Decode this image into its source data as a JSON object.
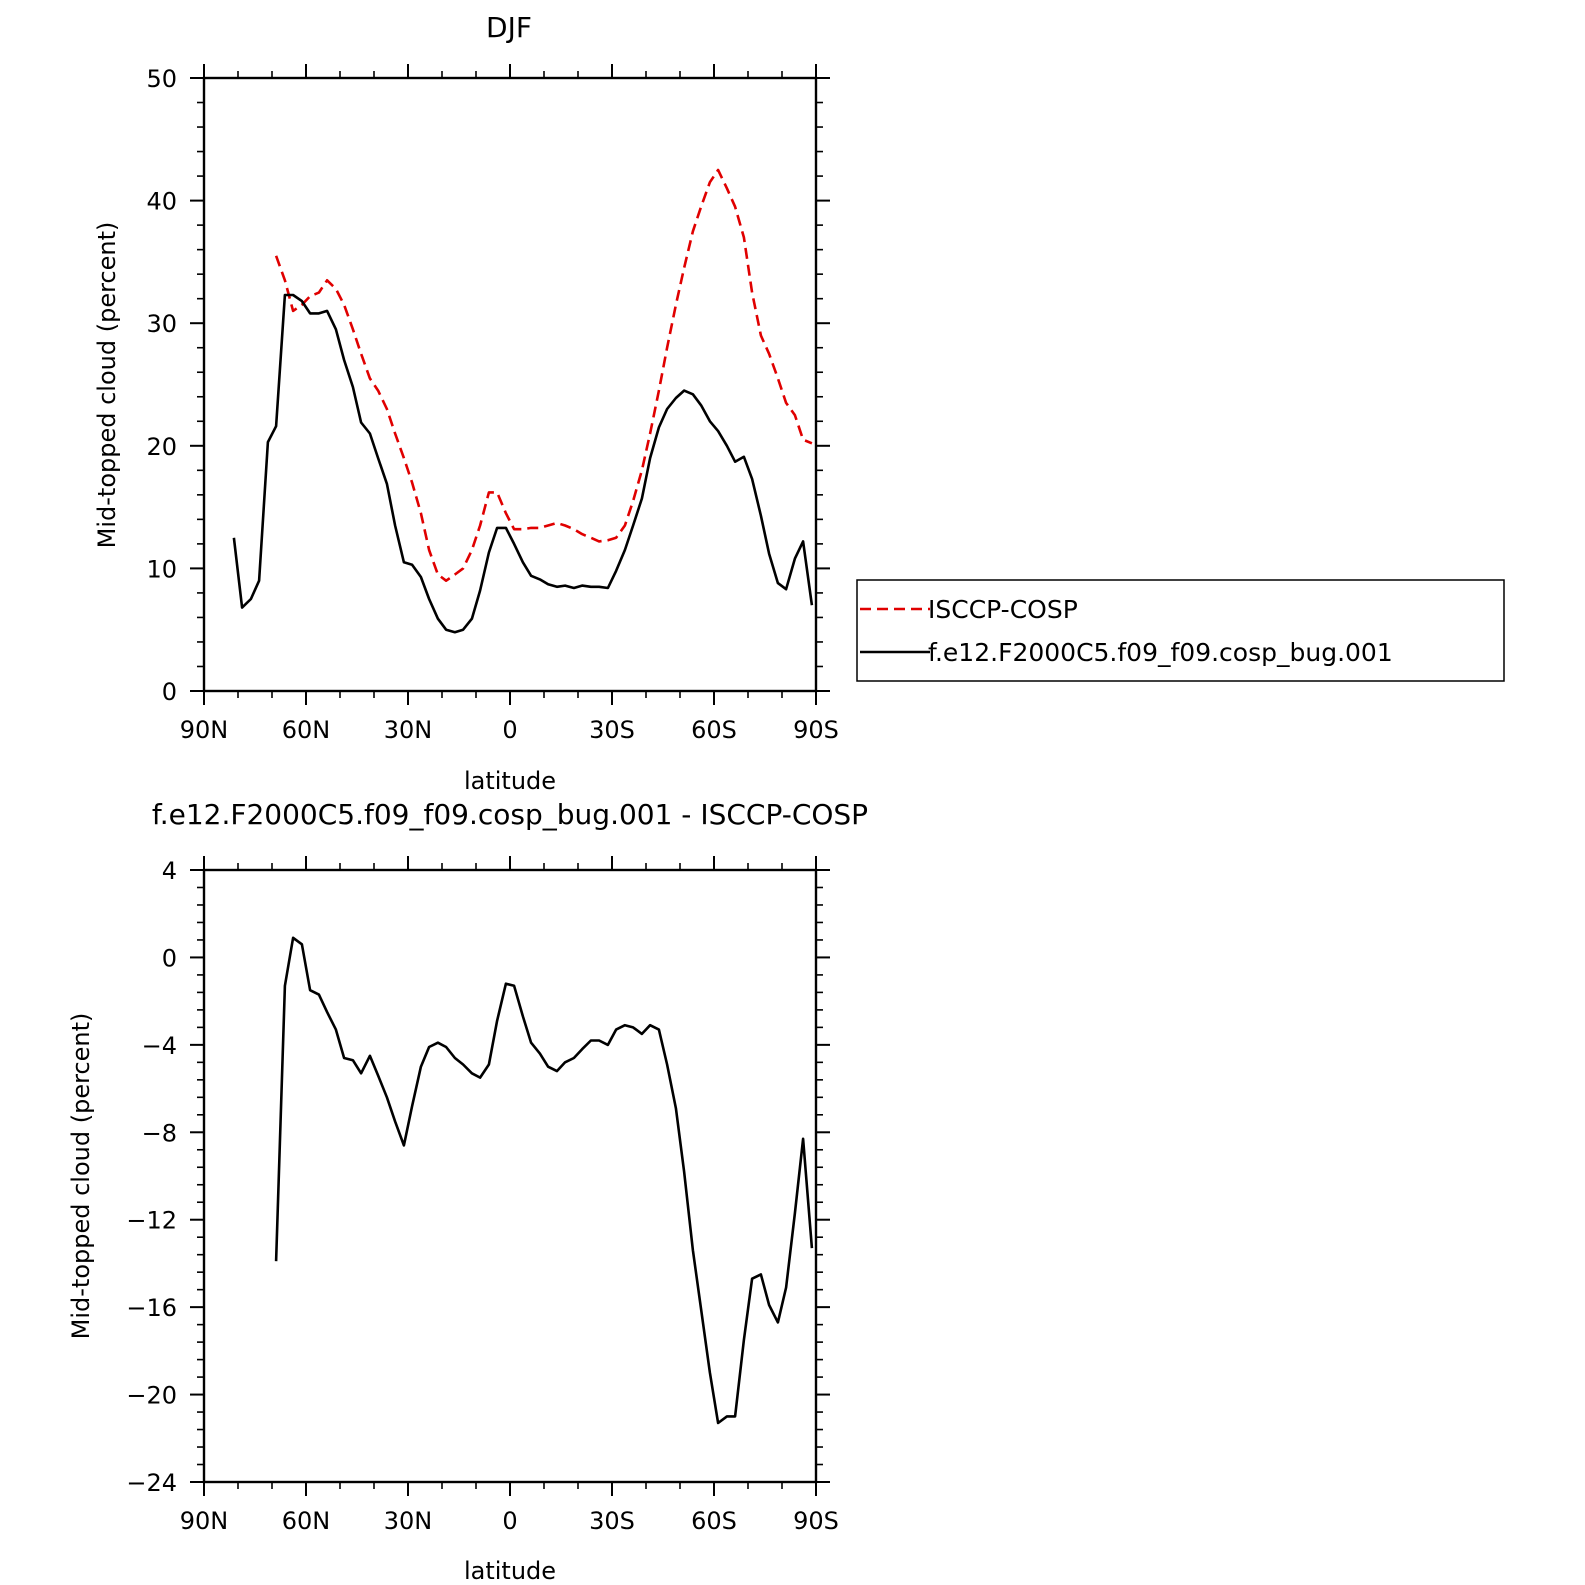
{
  "chart_data": [
    {
      "type": "line",
      "title": "DJF",
      "xlabel": "latitude",
      "ylabel": "Mid-topped cloud (percent)",
      "xlim": [
        90,
        -90
      ],
      "ylim": [
        0,
        50
      ],
      "xticks": [
        90,
        60,
        30,
        0,
        -30,
        -60,
        -90
      ],
      "xtick_labels": [
        "90N",
        "60N",
        "30N",
        "0",
        "30S",
        "60S",
        "90S"
      ],
      "yticks": [
        0,
        10,
        20,
        30,
        40,
        50
      ],
      "ytick_labels": [
        "0",
        "10",
        "20",
        "30",
        "40",
        "50"
      ],
      "legend_position": "right",
      "series": [
        {
          "name": "ISCCP-COSP",
          "color": "#e00000",
          "style": "dashed",
          "x": [
            68.8,
            66.2,
            63.8,
            61.2,
            58.8,
            56.2,
            53.8,
            51.2,
            48.8,
            46.2,
            43.8,
            41.2,
            38.8,
            36.2,
            33.8,
            31.2,
            28.8,
            26.2,
            23.8,
            21.2,
            18.8,
            16.2,
            13.8,
            11.2,
            8.8,
            6.2,
            3.8,
            1.2,
            -1.2,
            -3.8,
            -6.2,
            -8.8,
            -11.2,
            -13.8,
            -16.2,
            -18.8,
            -21.2,
            -23.8,
            -26.2,
            -28.8,
            -31.2,
            -33.8,
            -36.2,
            -38.8,
            -41.2,
            -43.8,
            -46.2,
            -48.8,
            -51.2,
            -53.8,
            -56.2,
            -58.8,
            -61.2,
            -63.8,
            -66.2,
            -68.8,
            -71.2,
            -73.8,
            -76.2,
            -78.8,
            -81.2,
            -83.8,
            -86.2,
            -88.8
          ],
          "values": [
            35.5,
            33.5,
            31.0,
            31.5,
            32.2,
            32.5,
            33.5,
            32.8,
            31.5,
            29.5,
            27.5,
            25.5,
            24.5,
            23.0,
            21.0,
            19.0,
            17.0,
            14.5,
            11.5,
            9.5,
            9.0,
            9.5,
            10.0,
            11.5,
            13.5,
            16.2,
            16.2,
            14.5,
            13.2,
            13.2,
            13.3,
            13.3,
            13.5,
            13.7,
            13.5,
            13.2,
            12.8,
            12.5,
            12.2,
            12.3,
            12.5,
            13.5,
            15.5,
            18.0,
            21.0,
            24.5,
            28.0,
            31.5,
            34.5,
            37.5,
            39.5,
            41.5,
            42.5,
            41.0,
            39.5,
            37.0,
            32.5,
            29.0,
            27.5,
            25.5,
            23.5,
            22.5,
            20.5,
            20.2
          ]
        },
        {
          "name": "f.e12.F2000C5.f09_f09.cosp_bug.001",
          "color": "#000000",
          "style": "solid",
          "x": [
            81.2,
            78.8,
            76.2,
            73.8,
            71.2,
            68.8,
            66.2,
            63.8,
            61.2,
            58.8,
            56.2,
            53.8,
            51.2,
            48.8,
            46.2,
            43.8,
            41.2,
            38.8,
            36.2,
            33.8,
            31.2,
            28.8,
            26.2,
            23.8,
            21.2,
            18.8,
            16.2,
            13.8,
            11.2,
            8.8,
            6.2,
            3.8,
            1.2,
            -1.2,
            -3.8,
            -6.2,
            -8.8,
            -11.2,
            -13.8,
            -16.2,
            -18.8,
            -21.2,
            -23.8,
            -26.2,
            -28.8,
            -31.2,
            -33.8,
            -36.2,
            -38.8,
            -41.2,
            -43.8,
            -46.2,
            -48.8,
            -51.2,
            -53.8,
            -56.2,
            -58.8,
            -61.2,
            -63.8,
            -66.2,
            -68.8,
            -71.2,
            -73.8,
            -76.2,
            -78.8,
            -81.2,
            -83.8,
            -86.2,
            -88.8
          ],
          "values": [
            12.5,
            6.8,
            7.5,
            9.0,
            20.3,
            21.6,
            32.3,
            32.3,
            31.8,
            30.8,
            30.8,
            31.0,
            29.5,
            27.0,
            24.8,
            21.9,
            21.0,
            19.0,
            16.9,
            13.5,
            10.5,
            10.3,
            9.3,
            7.5,
            5.9,
            5.0,
            4.8,
            5.0,
            5.9,
            8.2,
            11.3,
            13.3,
            13.3,
            12.0,
            10.5,
            9.4,
            9.1,
            8.7,
            8.5,
            8.6,
            8.4,
            8.6,
            8.5,
            8.5,
            8.4,
            9.8,
            11.5,
            13.5,
            15.7,
            19.0,
            21.5,
            23.0,
            23.9,
            24.5,
            24.2,
            23.3,
            22.0,
            21.2,
            20.0,
            18.7,
            19.1,
            17.3,
            14.3,
            11.2,
            8.8,
            8.3,
            10.8,
            12.2,
            7.0
          ]
        }
      ]
    },
    {
      "type": "line",
      "title": "f.e12.F2000C5.f09_f09.cosp_bug.001 - ISCCP-COSP",
      "xlabel": "latitude",
      "ylabel": "Mid-topped cloud (percent)",
      "xlim": [
        90,
        -90
      ],
      "ylim": [
        -24,
        4
      ],
      "xticks": [
        90,
        60,
        30,
        0,
        -30,
        -60,
        -90
      ],
      "xtick_labels": [
        "90N",
        "60N",
        "30N",
        "0",
        "30S",
        "60S",
        "90S"
      ],
      "yticks": [
        -24,
        -20,
        -16,
        -12,
        -8,
        -4,
        0,
        4
      ],
      "ytick_labels": [
        "−24",
        "−20",
        "−16",
        "−12",
        "−8",
        "−4",
        "0",
        "4"
      ],
      "series": [
        {
          "color": "#000000",
          "style": "solid",
          "x": [
            68.8,
            66.2,
            63.8,
            61.2,
            58.8,
            56.2,
            53.8,
            51.2,
            48.8,
            46.2,
            43.8,
            41.2,
            38.8,
            36.2,
            33.8,
            31.2,
            28.8,
            26.2,
            23.8,
            21.2,
            18.8,
            16.2,
            13.8,
            11.2,
            8.8,
            6.2,
            3.8,
            1.2,
            -1.2,
            -3.8,
            -6.2,
            -8.8,
            -11.2,
            -13.8,
            -16.2,
            -18.8,
            -21.2,
            -23.8,
            -26.2,
            -28.8,
            -31.2,
            -33.8,
            -36.2,
            -38.8,
            -41.2,
            -43.8,
            -46.2,
            -48.8,
            -51.2,
            -53.8,
            -56.2,
            -58.8,
            -61.2,
            -63.8,
            -66.2,
            -68.8,
            -71.2,
            -73.8,
            -76.2,
            -78.8,
            -81.2,
            -83.8,
            -86.2,
            -88.8
          ],
          "values": [
            -13.9,
            -1.3,
            0.9,
            0.6,
            -1.5,
            -1.7,
            -2.5,
            -3.3,
            -4.6,
            -4.7,
            -5.3,
            -4.5,
            -5.4,
            -6.4,
            -7.5,
            -8.6,
            -6.8,
            -5.0,
            -4.1,
            -3.9,
            -4.1,
            -4.6,
            -4.9,
            -5.3,
            -5.5,
            -4.9,
            -2.9,
            -1.2,
            -1.3,
            -2.7,
            -3.9,
            -4.4,
            -5.0,
            -5.2,
            -4.8,
            -4.6,
            -4.2,
            -3.8,
            -3.8,
            -4.0,
            -3.3,
            -3.1,
            -3.2,
            -3.5,
            -3.1,
            -3.3,
            -4.9,
            -6.9,
            -9.8,
            -13.4,
            -16.1,
            -19.0,
            -21.3,
            -21.0,
            -21.0,
            -17.5,
            -14.7,
            -14.5,
            -15.9,
            -16.7,
            -15.1,
            -11.7,
            -8.3,
            -13.3
          ]
        }
      ]
    }
  ]
}
